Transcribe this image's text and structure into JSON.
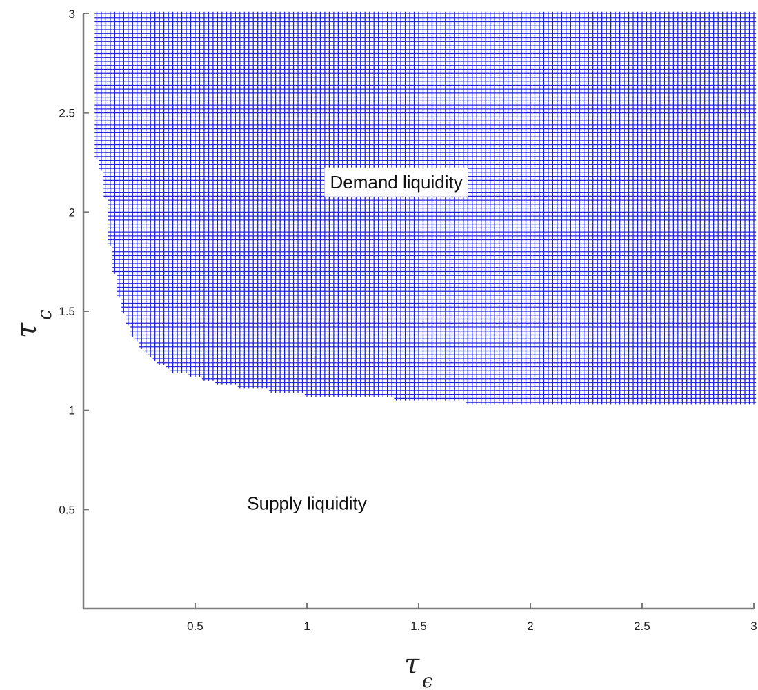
{
  "chart_data": {
    "type": "scatter",
    "title": "",
    "xlabel": {
      "symbol": "τ",
      "subscript": "ϵ"
    },
    "ylabel": {
      "symbol": "τ",
      "subscript": "c"
    },
    "xlim": [
      0,
      3
    ],
    "ylim": [
      0,
      3
    ],
    "xticks": [
      "0.5",
      "1",
      "1.5",
      "2",
      "2.5",
      "3"
    ],
    "xtick_values": [
      0.5,
      1,
      1.5,
      2,
      2.5,
      3
    ],
    "yticks": [
      "0.5",
      "1",
      "1.5",
      "2",
      "2.5",
      "3"
    ],
    "ytick_values": [
      0.5,
      1,
      1.5,
      2,
      2.5,
      3
    ],
    "grid": false,
    "marker": "+",
    "marker_color": "#1f1fe0",
    "grid_step": 0.02,
    "series": [
      {
        "region": "demand",
        "boundary": {
          "x": [
            0.06,
            0.09,
            0.12,
            0.15,
            0.18,
            0.22,
            0.27,
            0.32,
            0.4,
            0.5,
            0.6,
            0.75,
            0.9,
            1.1,
            1.4,
            1.86,
            3.0
          ],
          "y_min": [
            2.28,
            2.18,
            1.84,
            1.62,
            1.5,
            1.38,
            1.3,
            1.25,
            1.2,
            1.17,
            1.14,
            1.11,
            1.09,
            1.07,
            1.06,
            1.03,
            1.03
          ]
        }
      }
    ],
    "annotations": [
      {
        "text": "Demand liquidity",
        "x": 1.4,
        "y": 2.12
      },
      {
        "text": "Supply liquidity",
        "x": 1.0,
        "y": 0.5
      }
    ]
  }
}
